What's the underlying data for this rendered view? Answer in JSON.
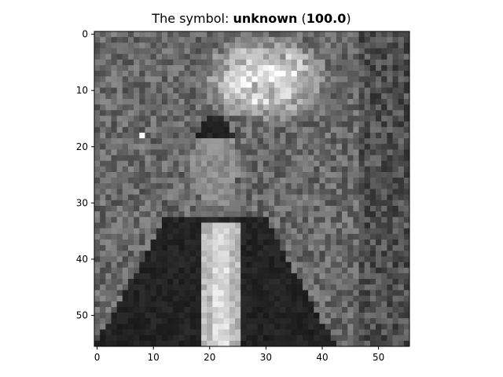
{
  "chart_data": {
    "type": "heatmap",
    "colormap": "gray",
    "title": {
      "prefix": "The symbol: ",
      "label": "unknown",
      "open": " (",
      "score": "100.0",
      "close": ")"
    },
    "grid": false,
    "legend": "none",
    "image_size": [
      56,
      56
    ],
    "xlim": [
      -0.5,
      55.5
    ],
    "ylim": [
      55.5,
      -0.5
    ],
    "xticks": [
      0,
      10,
      20,
      30,
      40,
      50
    ],
    "yticks": [
      0,
      10,
      20,
      30,
      40,
      50
    ],
    "xticklabels": [
      "0",
      "10",
      "20",
      "30",
      "40",
      "50"
    ],
    "yticklabels": [
      "0",
      "10",
      "20",
      "30",
      "40",
      "50"
    ],
    "image_description": "grayscale photo of a dark-haired man in a dark suit jacket and white shirt with light tie, against a noisy mottled background with a bright cloud-like region behind his head"
  }
}
